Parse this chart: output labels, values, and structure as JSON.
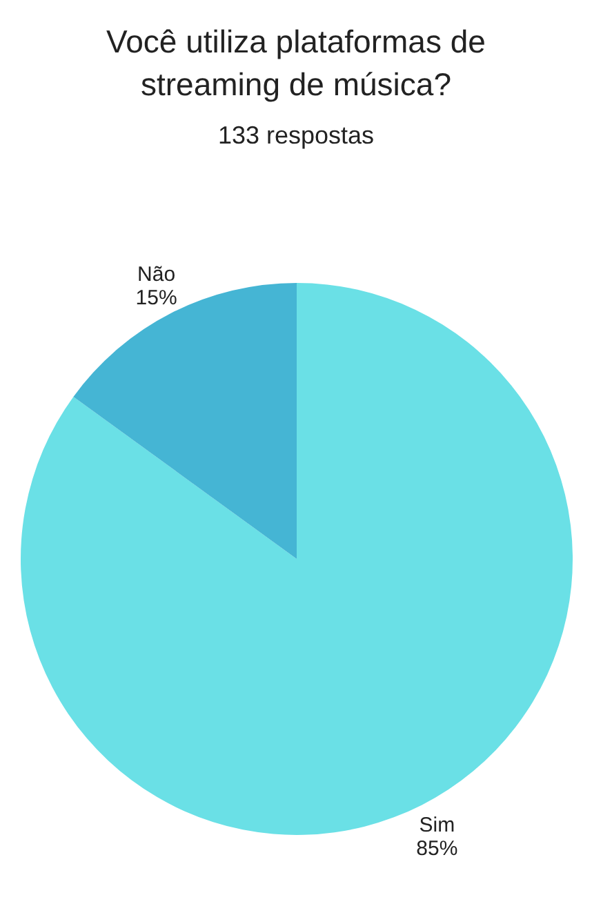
{
  "chart_data": {
    "type": "pie",
    "title": "Você utiliza plataformas de streaming de música?",
    "subtitle": "133 respostas",
    "categories": [
      "Sim",
      "Não"
    ],
    "values": [
      85,
      15
    ],
    "colors": [
      "#6ae0e6",
      "#45b5d4"
    ],
    "value_labels": [
      "85%",
      "15%"
    ]
  }
}
